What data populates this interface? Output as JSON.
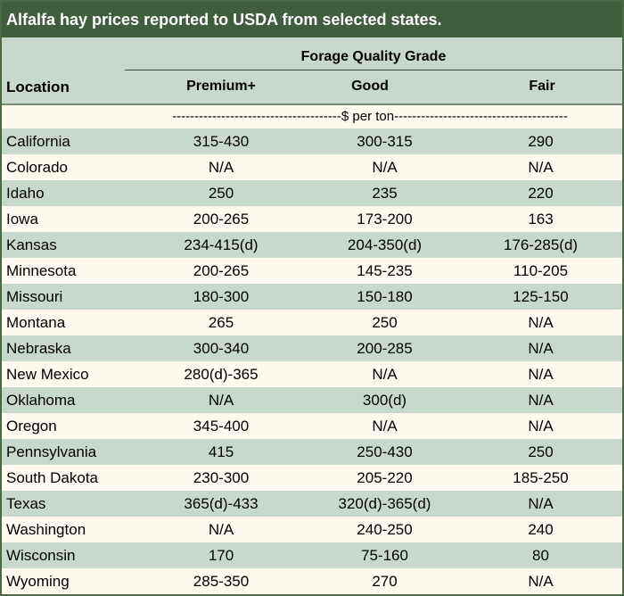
{
  "title": "Alfalfa hay prices reported to USDA from selected states.",
  "header": {
    "group_label": "Forage Quality Grade",
    "location_label": "Location",
    "columns": [
      "Premium+",
      "Good",
      "Fair"
    ]
  },
  "unit_line": "--------------------------------------$ per ton---------------------------------------",
  "colors": {
    "title_bar": "#3f5e3c",
    "shaded_row": "#c9d8cd",
    "plain_row": "#fefaef"
  },
  "rows": [
    {
      "location": "California",
      "premium": "315-430",
      "good": "300-315",
      "fair": "290"
    },
    {
      "location": "Colorado",
      "premium": "N/A",
      "good": "N/A",
      "fair": "N/A"
    },
    {
      "location": "Idaho",
      "premium": "250",
      "good": "235",
      "fair": "220"
    },
    {
      "location": "Iowa",
      "premium": "200-265",
      "good": "173-200",
      "fair": "163"
    },
    {
      "location": "Kansas",
      "premium": "234-415(d)",
      "good": "204-350(d)",
      "fair": "176-285(d)"
    },
    {
      "location": "Minnesota",
      "premium": "200-265",
      "good": "145-235",
      "fair": "110-205"
    },
    {
      "location": "Missouri",
      "premium": "180-300",
      "good": "150-180",
      "fair": "125-150"
    },
    {
      "location": "Montana",
      "premium": "265",
      "good": "250",
      "fair": "N/A"
    },
    {
      "location": "Nebraska",
      "premium": "300-340",
      "good": "200-285",
      "fair": "N/A"
    },
    {
      "location": "New Mexico",
      "premium": "280(d)-365",
      "good": "N/A",
      "fair": "N/A"
    },
    {
      "location": "Oklahoma",
      "premium": "N/A",
      "good": "300(d)",
      "fair": "N/A"
    },
    {
      "location": "Oregon",
      "premium": "345-400",
      "good": "N/A",
      "fair": "N/A"
    },
    {
      "location": "Pennsylvania",
      "premium": "415",
      "good": "250-430",
      "fair": "250"
    },
    {
      "location": "South Dakota",
      "premium": "230-300",
      "good": "205-220",
      "fair": "185-250"
    },
    {
      "location": "Texas",
      "premium": "365(d)-433",
      "good": "320(d)-365(d)",
      "fair": "N/A"
    },
    {
      "location": "Washington",
      "premium": "N/A",
      "good": "240-250",
      "fair": "240"
    },
    {
      "location": "Wisconsin",
      "premium": "170",
      "good": "75-160",
      "fair": "80"
    },
    {
      "location": "Wyoming",
      "premium": "285-350",
      "good": "270",
      "fair": "N/A"
    }
  ]
}
